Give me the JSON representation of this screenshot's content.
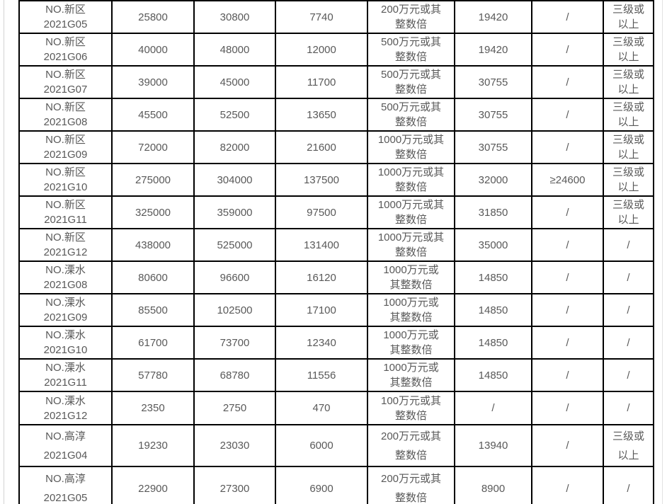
{
  "table": {
    "column_keys": [
      "c1",
      "c2",
      "c3",
      "c4",
      "c5",
      "c6",
      "c7",
      "c8"
    ],
    "rows": [
      [
        "NO.新区\n2021G05",
        "25800",
        "30800",
        "7740",
        "200万元或其\n整数倍",
        "19420",
        "/",
        "三级或\n以上"
      ],
      [
        "NO.新区\n2021G06",
        "40000",
        "48000",
        "12000",
        "500万元或其\n整数倍",
        "19420",
        "/",
        "三级或\n以上"
      ],
      [
        "NO.新区\n2021G07",
        "39000",
        "45000",
        "11700",
        "500万元或其\n整数倍",
        "30755",
        "/",
        "三级或\n以上"
      ],
      [
        "NO.新区\n2021G08",
        "45500",
        "52500",
        "13650",
        "500万元或其\n整数倍",
        "30755",
        "/",
        "三级或\n以上"
      ],
      [
        "NO.新区\n2021G09",
        "72000",
        "82000",
        "21600",
        "1000万元或其\n整数倍",
        "30755",
        "/",
        "三级或\n以上"
      ],
      [
        "NO.新区\n2021G10",
        "275000",
        "304000",
        "137500",
        "1000万元或其\n整数倍",
        "32000",
        "≥24600",
        "三级或\n以上"
      ],
      [
        "NO.新区\n2021G11",
        "325000",
        "359000",
        "97500",
        "1000万元或其\n整数倍",
        "31850",
        "/",
        "三级或\n以上"
      ],
      [
        "NO.新区\n2021G12",
        "438000",
        "525000",
        "131400",
        "1000万元或其\n整数倍",
        "35000",
        "/",
        "/"
      ],
      [
        "NO.溧水\n2021G08",
        "80600",
        "96600",
        "16120",
        "1000万元或\n其整数倍",
        "14850",
        "/",
        "/"
      ],
      [
        "NO.溧水\n2021G09",
        "85500",
        "102500",
        "17100",
        "1000万元或\n其整数倍",
        "14850",
        "/",
        "/"
      ],
      [
        "NO.溧水\n2021G10",
        "61700",
        "73700",
        "12340",
        "1000万元或\n其整数倍",
        "14850",
        "/",
        "/"
      ],
      [
        "NO.溧水\n2021G11",
        "57780",
        "68780",
        "11556",
        "1000万元或\n其整数倍",
        "14850",
        "/",
        "/"
      ],
      [
        "NO.溧水\n2021G12",
        "2350",
        "2750",
        "470",
        "100万元或其\n整数倍",
        "/",
        "/",
        "/"
      ],
      [
        "NO.高淳\n2021G04",
        "19230",
        "23030",
        "6000",
        "200万元或其\n整数倍",
        "13940",
        "/",
        "三级或\n以上"
      ],
      [
        "NO.高淳\n2021G05",
        "22900",
        "27300",
        "6900",
        "200万元或其\n整数倍",
        "8900",
        "/",
        "/"
      ]
    ]
  }
}
